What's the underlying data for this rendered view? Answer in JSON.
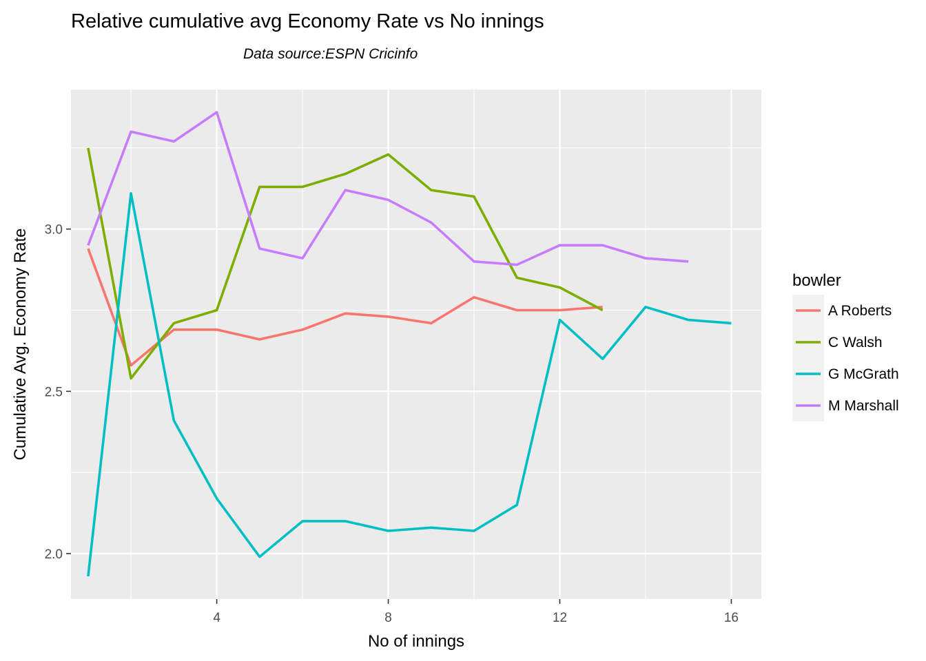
{
  "chart_data": {
    "type": "line",
    "title": "Relative cumulative avg Economy Rate vs No innings",
    "subtitle": "Data source:ESPN Cricinfo",
    "xlabel": "No of innings",
    "ylabel": "Cumulative Avg. Economy Rate",
    "xlim": [
      0.6,
      16.7
    ],
    "ylim": [
      1.86,
      3.43
    ],
    "x_ticks": [
      4,
      8,
      12,
      16
    ],
    "x_tick_labels": [
      "4",
      "8",
      "12",
      "16"
    ],
    "y_ticks": [
      2.0,
      2.5,
      3.0
    ],
    "y_tick_labels": [
      "2.0",
      "2.5",
      "3.0"
    ],
    "grid": true,
    "legend": {
      "title": "bowler",
      "position": "right"
    },
    "series": [
      {
        "name": "A Roberts",
        "color": "#F8766D",
        "x": [
          1,
          2,
          3,
          4,
          5,
          6,
          7,
          8,
          9,
          10,
          11,
          12,
          13
        ],
        "values": [
          2.94,
          2.58,
          2.69,
          2.69,
          2.66,
          2.69,
          2.74,
          2.73,
          2.71,
          2.79,
          2.75,
          2.75,
          2.76
        ]
      },
      {
        "name": "C Walsh",
        "color": "#7CAE00",
        "x": [
          1,
          2,
          3,
          4,
          5,
          6,
          7,
          8,
          9,
          10,
          11,
          12,
          13
        ],
        "values": [
          3.25,
          2.54,
          2.71,
          2.75,
          3.13,
          3.13,
          3.17,
          3.23,
          3.12,
          3.1,
          2.85,
          2.82,
          2.75
        ]
      },
      {
        "name": "G McGrath",
        "color": "#00BFC4",
        "x": [
          1,
          2,
          3,
          4,
          5,
          6,
          7,
          8,
          9,
          10,
          11,
          12,
          13,
          14,
          15,
          16
        ],
        "values": [
          1.93,
          3.11,
          2.41,
          2.17,
          1.99,
          2.1,
          2.1,
          2.07,
          2.08,
          2.07,
          2.15,
          2.72,
          2.6,
          2.76,
          2.72,
          2.71
        ]
      },
      {
        "name": "M Marshall",
        "color": "#C77CFF",
        "x": [
          1,
          2,
          3,
          4,
          5,
          6,
          7,
          8,
          9,
          10,
          11,
          12,
          13,
          14,
          15
        ],
        "values": [
          2.95,
          3.3,
          3.27,
          3.36,
          2.94,
          2.91,
          3.12,
          3.09,
          3.02,
          2.9,
          2.89,
          2.95,
          2.95,
          2.91,
          2.9
        ]
      }
    ]
  }
}
